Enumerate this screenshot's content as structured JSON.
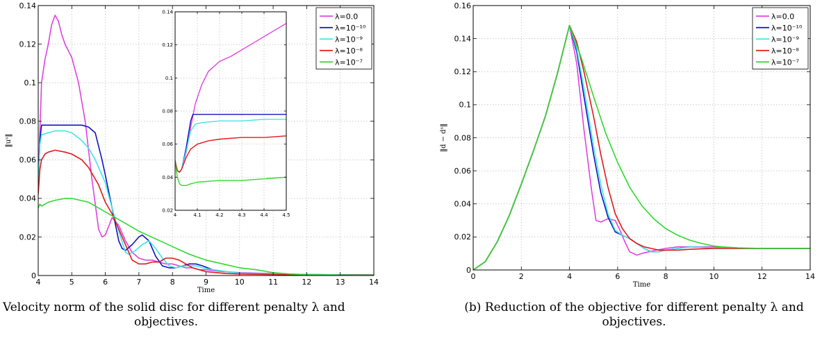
{
  "captions": {
    "left_line1": "Velocity norm of the solid disc for different penalty λ and",
    "left_line2": "objectives.",
    "right_line1": "(b) Reduction of the objective for different penalty λ and",
    "right_line2": "objectives."
  },
  "colors": {
    "magenta": "#e040e0",
    "blue": "#1010c0",
    "cyan": "#3ee6e6",
    "red": "#e01818",
    "green": "#30d830"
  },
  "chart_data": [
    {
      "id": "left-main",
      "type": "line",
      "xlabel": "Time",
      "ylabel": "‖uˢ‖",
      "xlim": [
        4,
        14
      ],
      "ylim": [
        0,
        0.14
      ],
      "xticks": [
        4,
        5,
        6,
        7,
        8,
        9,
        10,
        11,
        12,
        13,
        14
      ],
      "xtick_labels": [
        "4",
        "5",
        "6",
        "7",
        "8",
        "9",
        "10",
        "11",
        "12",
        "13",
        "14"
      ],
      "yticks": [
        0,
        0.02,
        0.04,
        0.06,
        0.08,
        0.1,
        0.12,
        0.14
      ],
      "ytick_labels": [
        "0",
        "0.02",
        "0.04",
        "0.06",
        "0.08",
        "0.1",
        "0.12",
        "0.14"
      ],
      "grid": true,
      "legend": "top-right",
      "series": [
        {
          "name": "λ=0.0",
          "color": "#e040e0",
          "x": [
            4,
            4.1,
            4.2,
            4.3,
            4.4,
            4.5,
            4.6,
            4.7,
            4.8,
            5.0,
            5.2,
            5.4,
            5.6,
            5.8,
            5.9,
            6.0,
            6.2,
            6.4,
            6.6,
            6.8,
            7.0,
            7.2,
            7.4,
            7.6,
            7.8,
            8.0,
            8.2,
            8.4,
            8.6,
            8.8,
            9.0,
            9.5,
            10,
            11,
            12,
            14
          ],
          "y": [
            0.05,
            0.1,
            0.112,
            0.12,
            0.13,
            0.135,
            0.132,
            0.125,
            0.12,
            0.113,
            0.1,
            0.08,
            0.05,
            0.024,
            0.02,
            0.021,
            0.03,
            0.026,
            0.018,
            0.012,
            0.009,
            0.008,
            0.008,
            0.007,
            0.006,
            0.006,
            0.005,
            0.004,
            0.004,
            0.003,
            0.003,
            0.002,
            0.0015,
            0.001,
            0.0005,
            0.0003
          ]
        },
        {
          "name": "λ=10⁻¹⁰",
          "color": "#1010c0",
          "x": [
            4,
            4.05,
            4.1,
            4.3,
            4.5,
            4.8,
            5.0,
            5.3,
            5.5,
            5.7,
            5.9,
            6.0,
            6.2,
            6.4,
            6.5,
            6.6,
            6.8,
            7.0,
            7.1,
            7.3,
            7.5,
            7.7,
            7.9,
            8.1,
            8.3,
            8.5,
            8.7,
            8.9,
            9.2,
            9.6,
            10,
            11,
            12,
            14
          ],
          "y": [
            0.045,
            0.07,
            0.078,
            0.078,
            0.078,
            0.078,
            0.078,
            0.078,
            0.077,
            0.074,
            0.06,
            0.052,
            0.035,
            0.018,
            0.014,
            0.013,
            0.016,
            0.02,
            0.021,
            0.018,
            0.01,
            0.005,
            0.004,
            0.004,
            0.005,
            0.006,
            0.006,
            0.005,
            0.003,
            0.002,
            0.0012,
            0.0008,
            0.0005,
            0.0003
          ]
        },
        {
          "name": "λ=10⁻⁹",
          "color": "#3ee6e6",
          "x": [
            4,
            4.05,
            4.1,
            4.3,
            4.5,
            4.8,
            5.0,
            5.3,
            5.5,
            5.7,
            5.9,
            6.0,
            6.2,
            6.4,
            6.6,
            6.7,
            6.9,
            7.1,
            7.3,
            7.5,
            7.7,
            7.9,
            8.1,
            8.3,
            8.5,
            8.7,
            8.9,
            9.2,
            9.6,
            10,
            11,
            12,
            14
          ],
          "y": [
            0.045,
            0.068,
            0.073,
            0.074,
            0.075,
            0.075,
            0.074,
            0.07,
            0.066,
            0.06,
            0.052,
            0.048,
            0.035,
            0.023,
            0.012,
            0.011,
            0.013,
            0.016,
            0.018,
            0.014,
            0.009,
            0.005,
            0.004,
            0.005,
            0.005,
            0.005,
            0.004,
            0.003,
            0.002,
            0.0012,
            0.0008,
            0.0005,
            0.0003
          ]
        },
        {
          "name": "λ=10⁻⁸",
          "color": "#e01818",
          "x": [
            4,
            4.05,
            4.1,
            4.2,
            4.3,
            4.5,
            4.8,
            5.0,
            5.3,
            5.5,
            5.8,
            6.0,
            6.2,
            6.5,
            6.8,
            7.0,
            7.2,
            7.4,
            7.6,
            7.8,
            8.0,
            8.2,
            8.4,
            8.6,
            8.8,
            9.0,
            9.3,
            9.6,
            10,
            11,
            12,
            14
          ],
          "y": [
            0.042,
            0.055,
            0.06,
            0.063,
            0.064,
            0.065,
            0.064,
            0.063,
            0.06,
            0.056,
            0.047,
            0.038,
            0.032,
            0.02,
            0.008,
            0.006,
            0.006,
            0.007,
            0.007,
            0.009,
            0.009,
            0.008,
            0.006,
            0.004,
            0.003,
            0.002,
            0.0015,
            0.001,
            0.0008,
            0.0005,
            0.0003,
            0.0002
          ]
        },
        {
          "name": "λ=10⁻⁷",
          "color": "#30d830",
          "x": [
            4,
            4.05,
            4.1,
            4.3,
            4.5,
            4.8,
            5.0,
            5.5,
            6.0,
            6.5,
            7.0,
            7.5,
            8.0,
            8.5,
            9.0,
            9.5,
            10,
            10.5,
            11,
            11.5,
            12,
            13,
            14
          ],
          "y": [
            0.035,
            0.037,
            0.036,
            0.038,
            0.039,
            0.04,
            0.04,
            0.038,
            0.033,
            0.028,
            0.023,
            0.019,
            0.015,
            0.011,
            0.008,
            0.006,
            0.004,
            0.003,
            0.0015,
            0.0008,
            0.0004,
            0.0002,
            0.0001
          ]
        }
      ]
    },
    {
      "id": "left-inset",
      "type": "line",
      "xlim": [
        4,
        4.5
      ],
      "ylim": [
        0.02,
        0.14
      ],
      "xticks": [
        4,
        4.1,
        4.2,
        4.3,
        4.4,
        4.5
      ],
      "xtick_labels": [
        "4",
        "4.1",
        "4.2",
        "4.3",
        "4.4",
        "4.5"
      ],
      "yticks": [
        0.02,
        0.04,
        0.06,
        0.08,
        0.1,
        0.12,
        0.14
      ],
      "ytick_labels": [
        "0.02",
        "0.04",
        "0.06",
        "0.08",
        "0.1",
        "0.12",
        "0.14"
      ],
      "grid": true,
      "series": [
        {
          "name": "λ=0.0",
          "color": "#e040e0",
          "x": [
            4,
            4.01,
            4.02,
            4.03,
            4.05,
            4.07,
            4.09,
            4.12,
            4.15,
            4.2,
            4.25,
            4.3,
            4.35,
            4.4,
            4.45,
            4.5
          ],
          "y": [
            0.05,
            0.044,
            0.043,
            0.045,
            0.055,
            0.07,
            0.084,
            0.096,
            0.104,
            0.11,
            0.113,
            0.117,
            0.121,
            0.125,
            0.129,
            0.133
          ]
        },
        {
          "name": "λ=10⁻¹⁰",
          "color": "#1010c0",
          "x": [
            4,
            4.01,
            4.02,
            4.03,
            4.05,
            4.07,
            4.08,
            4.1,
            4.2,
            4.3,
            4.4,
            4.5
          ],
          "y": [
            0.05,
            0.044,
            0.043,
            0.045,
            0.058,
            0.074,
            0.078,
            0.078,
            0.078,
            0.078,
            0.078,
            0.078
          ]
        },
        {
          "name": "λ=10⁻⁹",
          "color": "#3ee6e6",
          "x": [
            4,
            4.01,
            4.02,
            4.03,
            4.05,
            4.07,
            4.09,
            4.12,
            4.2,
            4.3,
            4.4,
            4.5
          ],
          "y": [
            0.05,
            0.044,
            0.043,
            0.045,
            0.056,
            0.068,
            0.072,
            0.073,
            0.074,
            0.074,
            0.075,
            0.075
          ]
        },
        {
          "name": "λ=10⁻⁸",
          "color": "#e01818",
          "x": [
            4,
            4.01,
            4.02,
            4.03,
            4.05,
            4.07,
            4.1,
            4.15,
            4.2,
            4.3,
            4.4,
            4.5
          ],
          "y": [
            0.05,
            0.044,
            0.043,
            0.045,
            0.052,
            0.057,
            0.06,
            0.062,
            0.063,
            0.064,
            0.064,
            0.065
          ]
        },
        {
          "name": "λ=10⁻⁷",
          "color": "#30d830",
          "x": [
            4,
            4.01,
            4.02,
            4.03,
            4.05,
            4.07,
            4.1,
            4.2,
            4.3,
            4.4,
            4.5
          ],
          "y": [
            0.05,
            0.04,
            0.036,
            0.035,
            0.035,
            0.036,
            0.037,
            0.038,
            0.038,
            0.039,
            0.04
          ]
        }
      ]
    },
    {
      "id": "right-main",
      "type": "line",
      "xlabel": "Time",
      "ylabel": "‖d − dˢ‖",
      "xlim": [
        0,
        14
      ],
      "ylim": [
        0,
        0.16
      ],
      "xticks": [
        0,
        2,
        4,
        6,
        8,
        10,
        12,
        14
      ],
      "xtick_labels": [
        "0",
        "2",
        "4",
        "6",
        "8",
        "10",
        "12",
        "14"
      ],
      "yticks": [
        0,
        0.02,
        0.04,
        0.06,
        0.08,
        0.1,
        0.12,
        0.14,
        0.16
      ],
      "ytick_labels": [
        "0",
        "0.02",
        "0.04",
        "0.06",
        "0.08",
        "0.1",
        "0.12",
        "0.14",
        "0.16"
      ],
      "grid": true,
      "legend": "top-right",
      "series": [
        {
          "name": "λ=0.0",
          "color": "#e040e0",
          "x": [
            0,
            0.5,
            1,
            1.5,
            2,
            2.5,
            3,
            3.5,
            4,
            4.3,
            4.6,
            4.9,
            5.1,
            5.3,
            5.6,
            5.9,
            6.1,
            6.3,
            6.5,
            6.8,
            7.0,
            7.3,
            7.6,
            8.0,
            8.5,
            9.0,
            10,
            11,
            12,
            14
          ],
          "y": [
            0,
            0.005,
            0.017,
            0.033,
            0.052,
            0.072,
            0.093,
            0.119,
            0.148,
            0.125,
            0.085,
            0.05,
            0.03,
            0.029,
            0.031,
            0.03,
            0.024,
            0.017,
            0.011,
            0.009,
            0.01,
            0.011,
            0.012,
            0.013,
            0.014,
            0.014,
            0.014,
            0.013,
            0.013,
            0.013
          ]
        },
        {
          "name": "λ=10⁻¹⁰",
          "color": "#1010c0",
          "x": [
            0,
            0.5,
            1,
            1.5,
            2,
            2.5,
            3,
            3.5,
            4,
            4.3,
            4.6,
            5.0,
            5.3,
            5.6,
            5.9,
            6.2,
            6.5,
            6.8,
            7.1,
            7.4,
            7.7,
            8.0,
            8.5,
            9.0,
            10,
            11,
            12,
            14
          ],
          "y": [
            0,
            0.005,
            0.017,
            0.033,
            0.052,
            0.072,
            0.093,
            0.119,
            0.148,
            0.132,
            0.105,
            0.07,
            0.047,
            0.032,
            0.023,
            0.021,
            0.019,
            0.016,
            0.013,
            0.011,
            0.011,
            0.012,
            0.013,
            0.014,
            0.0135,
            0.013,
            0.013,
            0.013
          ]
        },
        {
          "name": "λ=10⁻⁹",
          "color": "#3ee6e6",
          "x": [
            0,
            0.5,
            1,
            1.5,
            2,
            2.5,
            3,
            3.5,
            4,
            4.3,
            4.6,
            5.0,
            5.3,
            5.6,
            5.9,
            6.2,
            6.5,
            6.8,
            7.1,
            7.4,
            7.7,
            8.0,
            8.5,
            9.0,
            10,
            11,
            12,
            14
          ],
          "y": [
            0,
            0.005,
            0.017,
            0.033,
            0.052,
            0.072,
            0.093,
            0.119,
            0.148,
            0.134,
            0.11,
            0.075,
            0.052,
            0.034,
            0.024,
            0.021,
            0.019,
            0.016,
            0.013,
            0.011,
            0.011,
            0.012,
            0.013,
            0.014,
            0.0135,
            0.013,
            0.013,
            0.013
          ]
        },
        {
          "name": "λ=10⁻⁸",
          "color": "#e01818",
          "x": [
            0,
            0.5,
            1,
            1.5,
            2,
            2.5,
            3,
            3.5,
            4,
            4.3,
            4.6,
            5.0,
            5.3,
            5.6,
            5.9,
            6.2,
            6.5,
            6.8,
            7.1,
            7.4,
            7.7,
            8.0,
            8.5,
            9.0,
            10,
            11,
            12,
            14
          ],
          "y": [
            0,
            0.005,
            0.017,
            0.033,
            0.052,
            0.072,
            0.093,
            0.119,
            0.148,
            0.138,
            0.12,
            0.093,
            0.07,
            0.05,
            0.034,
            0.025,
            0.019,
            0.016,
            0.014,
            0.013,
            0.012,
            0.012,
            0.012,
            0.0125,
            0.013,
            0.013,
            0.013,
            0.013
          ]
        },
        {
          "name": "λ=10⁻⁷",
          "color": "#30d830",
          "x": [
            0,
            0.5,
            1,
            1.5,
            2,
            2.5,
            3,
            3.5,
            4,
            4.5,
            5.0,
            5.5,
            6.0,
            6.5,
            7.0,
            7.5,
            8.0,
            8.5,
            9.0,
            9.5,
            10,
            10.5,
            11,
            12,
            13,
            14
          ],
          "y": [
            0,
            0.005,
            0.017,
            0.033,
            0.052,
            0.072,
            0.093,
            0.119,
            0.148,
            0.128,
            0.105,
            0.083,
            0.065,
            0.05,
            0.039,
            0.031,
            0.025,
            0.021,
            0.018,
            0.016,
            0.0145,
            0.0138,
            0.0134,
            0.013,
            0.013,
            0.013
          ]
        }
      ]
    }
  ]
}
